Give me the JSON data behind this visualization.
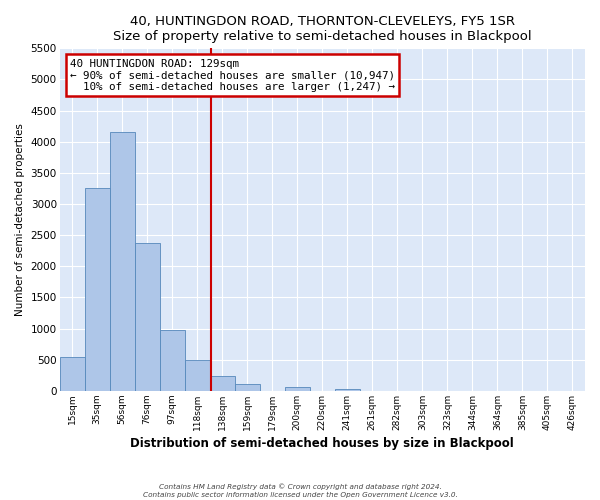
{
  "title": "40, HUNTINGDON ROAD, THORNTON-CLEVELEYS, FY5 1SR",
  "subtitle": "Size of property relative to semi-detached houses in Blackpool",
  "bar_labels": [
    "15sqm",
    "35sqm",
    "56sqm",
    "76sqm",
    "97sqm",
    "118sqm",
    "138sqm",
    "159sqm",
    "179sqm",
    "200sqm",
    "220sqm",
    "241sqm",
    "261sqm",
    "282sqm",
    "303sqm",
    "323sqm",
    "344sqm",
    "364sqm",
    "385sqm",
    "405sqm",
    "426sqm"
  ],
  "bar_values": [
    550,
    3250,
    4150,
    2380,
    970,
    500,
    245,
    110,
    0,
    65,
    0,
    35,
    0,
    0,
    0,
    0,
    0,
    0,
    0,
    0,
    0
  ],
  "bar_color": "#aec6e8",
  "bar_edge_color": "#5588bb",
  "property_sqm": 129,
  "pct_smaller": 90,
  "count_smaller": 10947,
  "pct_larger": 10,
  "count_larger": 1247,
  "ylabel": "Number of semi-detached properties",
  "xlabel": "Distribution of semi-detached houses by size in Blackpool",
  "ylim": [
    0,
    5500
  ],
  "yticks": [
    0,
    500,
    1000,
    1500,
    2000,
    2500,
    3000,
    3500,
    4000,
    4500,
    5000,
    5500
  ],
  "vline_color": "#cc0000",
  "annotation_box_edge": "#cc0000",
  "footer_line1": "Contains HM Land Registry data © Crown copyright and database right 2024.",
  "footer_line2": "Contains public sector information licensed under the Open Government Licence v3.0.",
  "bg_color": "#dde8f8",
  "fig_color": "#ffffff"
}
